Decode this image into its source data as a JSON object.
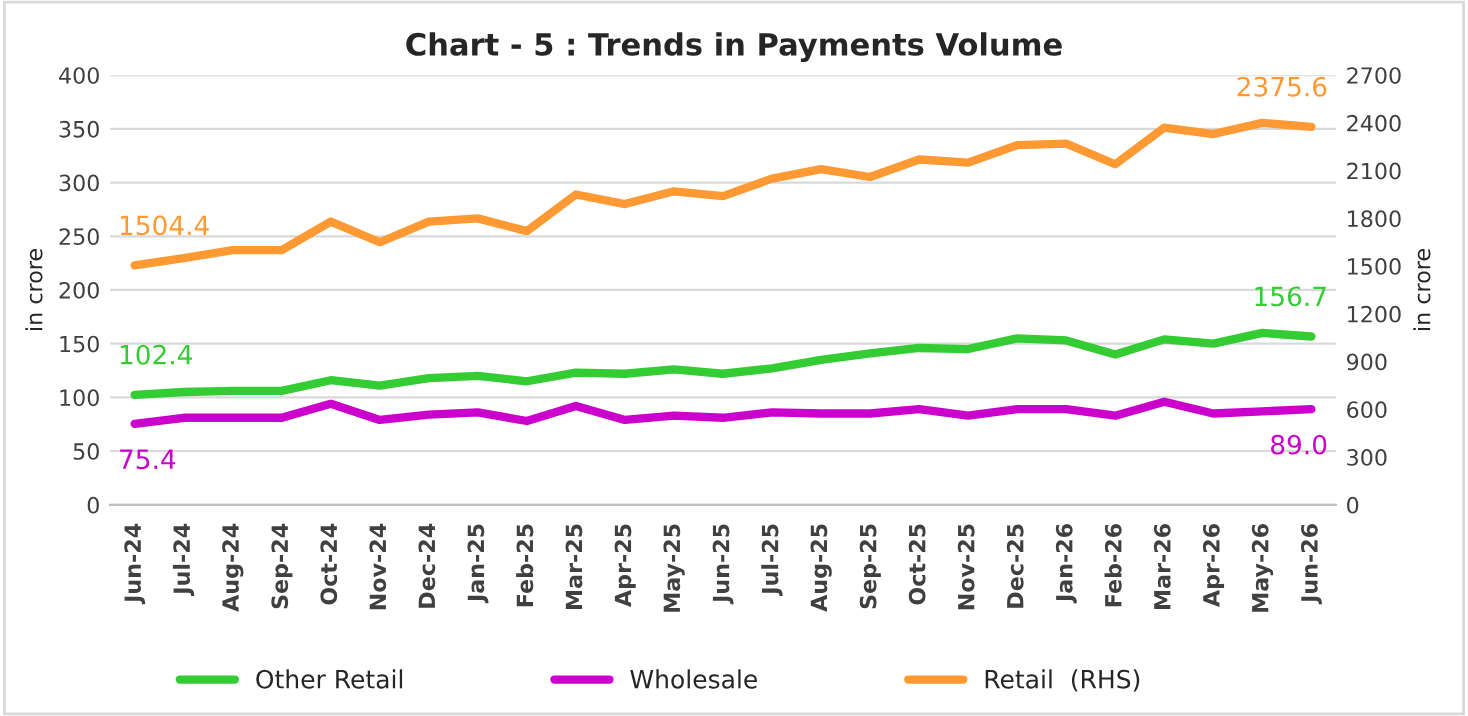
{
  "chart_data": {
    "type": "line",
    "title": "Chart - 5 : Trends in Payments Volume",
    "ylabel": "in crore",
    "y2label": "in crore",
    "categories": [
      "Jun-24",
      "Jul-24",
      "Aug-24",
      "Sep-24",
      "Oct-24",
      "Nov-24",
      "Dec-24",
      "Jan-25",
      "Feb-25",
      "Mar-25",
      "Apr-25",
      "May-25",
      "Jun-25",
      "Jul-25",
      "Aug-25",
      "Sep-25",
      "Oct-25",
      "Nov-25",
      "Dec-25",
      "Jan-26",
      "Feb-26",
      "Mar-26",
      "Apr-26",
      "May-26",
      "Jun-26"
    ],
    "series": [
      {
        "name": "Other Retail",
        "color": "#33cc33",
        "values": [
          102.4,
          105,
          106,
          106,
          116,
          111,
          118,
          120,
          115,
          123,
          122,
          126,
          122,
          127,
          135,
          141,
          146,
          145,
          155,
          153,
          140,
          154,
          150,
          160,
          156.7
        ],
        "value_labels": [
          "102.4",
          null,
          null,
          null,
          null,
          null,
          null,
          null,
          null,
          null,
          null,
          null,
          null,
          null,
          null,
          null,
          null,
          null,
          null,
          null,
          null,
          null,
          null,
          null,
          "156.7"
        ]
      },
      {
        "name": "Wholesale",
        "color": "#cc00cc",
        "values": [
          75.4,
          81,
          81,
          81,
          94,
          79,
          84,
          86,
          78,
          92,
          79,
          83,
          81,
          86,
          85,
          85,
          89,
          83,
          89,
          89,
          83,
          96,
          85,
          87,
          89.0
        ],
        "value_labels": [
          "75.4",
          null,
          null,
          null,
          null,
          null,
          null,
          null,
          null,
          null,
          null,
          null,
          null,
          null,
          null,
          null,
          null,
          null,
          null,
          null,
          null,
          null,
          null,
          null,
          "89.0"
        ]
      },
      {
        "name": "Retail  (RHS)",
        "color": "#ff9933",
        "axis": "y2",
        "values": [
          1504.4,
          1550,
          1600,
          1600,
          1780,
          1650,
          1780,
          1800,
          1720,
          1950,
          1890,
          1970,
          1940,
          2050,
          2110,
          2060,
          2170,
          2150,
          2260,
          2270,
          2140,
          2370,
          2330,
          2400,
          2375.6
        ],
        "value_labels": [
          "1504.4",
          null,
          null,
          null,
          null,
          null,
          null,
          null,
          null,
          null,
          null,
          null,
          null,
          null,
          null,
          null,
          null,
          null,
          null,
          null,
          null,
          null,
          null,
          null,
          "2375.6"
        ]
      }
    ],
    "ylim": [
      0,
      400
    ],
    "yticks": [
      0,
      50,
      100,
      150,
      200,
      250,
      300,
      350,
      400
    ],
    "y2lim": [
      0,
      2700
    ],
    "y2ticks": [
      0,
      300,
      600,
      900,
      1200,
      1500,
      1800,
      2100,
      2400,
      2700
    ],
    "grid": "y",
    "legend": "bottom",
    "marker": "none",
    "line_style": "solid"
  }
}
